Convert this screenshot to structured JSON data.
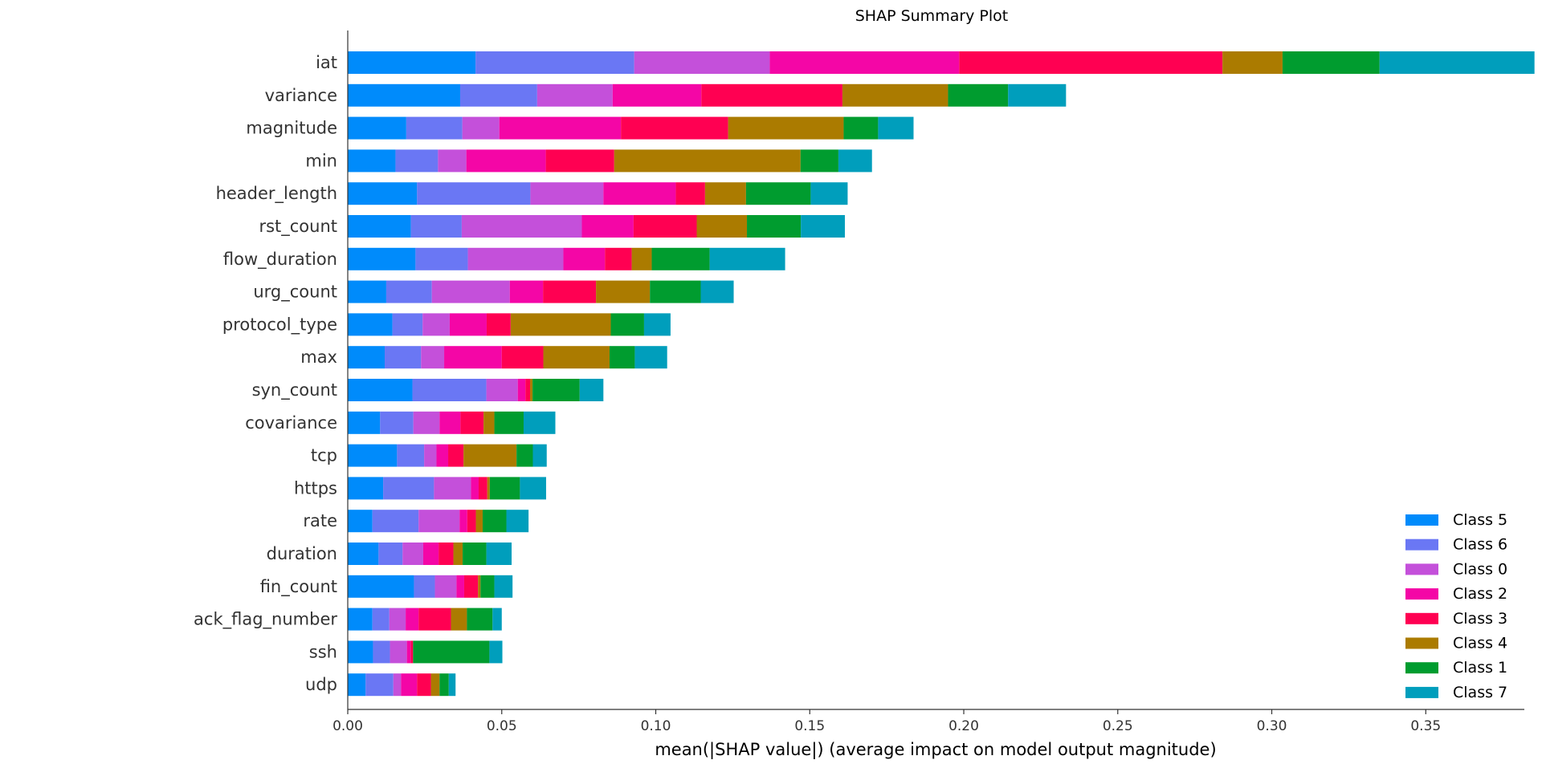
{
  "chart_data": {
    "type": "bar",
    "stacked": true,
    "orientation": "horizontal",
    "title": "SHAP Summary Plot",
    "xlabel": "mean(|SHAP value|) (average impact on model output magnitude)",
    "ylabel": "",
    "xlim": [
      0,
      0.382
    ],
    "xticks": [
      0.0,
      0.05,
      0.1,
      0.15,
      0.2,
      0.25,
      0.3,
      0.35
    ],
    "xtick_labels": [
      "0.00",
      "0.05",
      "0.10",
      "0.15",
      "0.20",
      "0.25",
      "0.30",
      "0.35"
    ],
    "grid": false,
    "legend_position": "bottom-right",
    "categories": [
      "iat",
      "variance",
      "magnitude",
      "min",
      "header_length",
      "rst_count",
      "flow_duration",
      "urg_count",
      "protocol_type",
      "max",
      "syn_count",
      "covariance",
      "tcp",
      "https",
      "rate",
      "duration",
      "fin_count",
      "ack_flag_number",
      "ssh",
      "udp"
    ],
    "series": [
      {
        "name": "Class 5",
        "color": "#008bfb",
        "values": [
          0.0415,
          0.0365,
          0.019,
          0.0155,
          0.0225,
          0.0205,
          0.022,
          0.0125,
          0.0145,
          0.012,
          0.021,
          0.0105,
          0.016,
          0.0115,
          0.008,
          0.01,
          0.0215,
          0.008,
          0.0082,
          0.0058
        ]
      },
      {
        "name": "Class 6",
        "color": "#6a77f4",
        "values": [
          0.0515,
          0.025,
          0.0182,
          0.0138,
          0.0368,
          0.0165,
          0.017,
          0.0148,
          0.0098,
          0.0118,
          0.024,
          0.0108,
          0.0088,
          0.0165,
          0.015,
          0.0078,
          0.0068,
          0.0055,
          0.0055,
          0.009
        ]
      },
      {
        "name": "Class 0",
        "color": "#c450da",
        "values": [
          0.044,
          0.0245,
          0.012,
          0.0092,
          0.0237,
          0.039,
          0.031,
          0.0253,
          0.0088,
          0.0075,
          0.0102,
          0.0085,
          0.004,
          0.012,
          0.0133,
          0.0067,
          0.007,
          0.0053,
          0.0055,
          0.0025
        ]
      },
      {
        "name": "Class 2",
        "color": "#f406a6",
        "values": [
          0.0615,
          0.0288,
          0.0395,
          0.0258,
          0.0235,
          0.0168,
          0.0135,
          0.0108,
          0.012,
          0.0187,
          0.0025,
          0.0068,
          0.0038,
          0.0025,
          0.0025,
          0.005,
          0.0025,
          0.0042,
          0.0012,
          0.0052
        ]
      },
      {
        "name": "Class 3",
        "color": "#ff0052",
        "values": [
          0.0855,
          0.0458,
          0.0348,
          0.0222,
          0.0095,
          0.0205,
          0.0087,
          0.0172,
          0.0078,
          0.0135,
          0.0015,
          0.0075,
          0.005,
          0.0028,
          0.0028,
          0.0048,
          0.0045,
          0.0105,
          0.0008,
          0.0045
        ]
      },
      {
        "name": "Class 4",
        "color": "#ab7b00",
        "values": [
          0.0195,
          0.0343,
          0.0375,
          0.0605,
          0.0133,
          0.0163,
          0.0065,
          0.0175,
          0.0325,
          0.0215,
          0.0008,
          0.0035,
          0.0172,
          0.0008,
          0.0022,
          0.003,
          0.0008,
          0.0052,
          0.0,
          0.0028
        ]
      },
      {
        "name": "Class 1",
        "color": "#009c2f",
        "values": [
          0.0315,
          0.0195,
          0.0112,
          0.0123,
          0.021,
          0.0175,
          0.0188,
          0.0165,
          0.0108,
          0.0082,
          0.0153,
          0.0095,
          0.0053,
          0.0098,
          0.0077,
          0.0077,
          0.0045,
          0.0083,
          0.0248,
          0.003
        ]
      },
      {
        "name": "Class 7",
        "color": "#009ebc",
        "values": [
          0.0503,
          0.0188,
          0.0115,
          0.0109,
          0.012,
          0.0143,
          0.0245,
          0.0107,
          0.0086,
          0.0105,
          0.0077,
          0.0103,
          0.0045,
          0.0085,
          0.0072,
          0.0082,
          0.0059,
          0.003,
          0.0042,
          0.0022
        ]
      }
    ]
  }
}
